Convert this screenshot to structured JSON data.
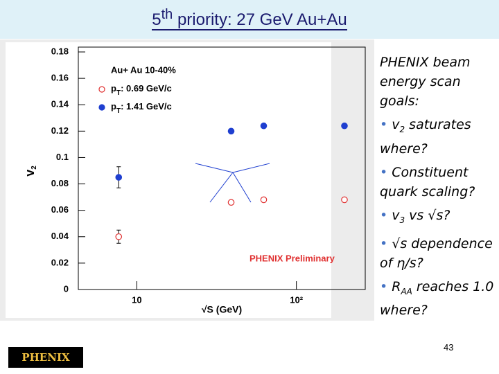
{
  "slide": {
    "title": [
      "5",
      "th",
      " priority: 27 GeV Au+Au"
    ],
    "intro": "PHENIX beam energy scan goals:",
    "bullets": [
      [
        "v",
        "2",
        " saturates where?"
      ],
      [
        "Constituent quark scaling?"
      ],
      [
        "v",
        "3",
        " vs √s?"
      ],
      [
        "√s dependence of η/s?"
      ],
      [
        "R",
        "AA",
        " reaches 1.0 where?"
      ]
    ],
    "page_number": "43",
    "logo": "PHENIX"
  },
  "chart_data": {
    "type": "scatter",
    "x_label": "√S (GeV)",
    "y_label": [
      "v",
      "2"
    ],
    "legend_title": "Au+ Au 10-40%",
    "annotation": "PHENIX Preliminary",
    "x": [
      7.7,
      39,
      62.4,
      200
    ],
    "series": [
      {
        "name": [
          "p",
          "T",
          ": 0.69 GeV/c"
        ],
        "color": "#e03030",
        "marker": "open",
        "values": [
          0.04,
          0.066,
          0.068,
          0.068
        ],
        "errors": [
          0.005,
          null,
          null,
          null
        ]
      },
      {
        "name": [
          "p",
          "T",
          ": 1.41 GeV/c"
        ],
        "color": "#1f3fd0",
        "marker": "filled",
        "values": [
          0.085,
          0.12,
          0.124,
          0.124
        ],
        "errors": [
          0.008,
          null,
          null,
          null
        ]
      }
    ],
    "xlog": true,
    "xlim": [
      4.3,
      270
    ],
    "xticks": [
      10,
      {
        "value": 100,
        "label": "10²"
      }
    ],
    "ylim": [
      0,
      0.18
    ],
    "yticks": [
      0,
      0.02,
      0.04,
      0.06,
      0.08,
      0.1,
      0.12,
      0.14,
      0.16,
      0.18
    ]
  }
}
